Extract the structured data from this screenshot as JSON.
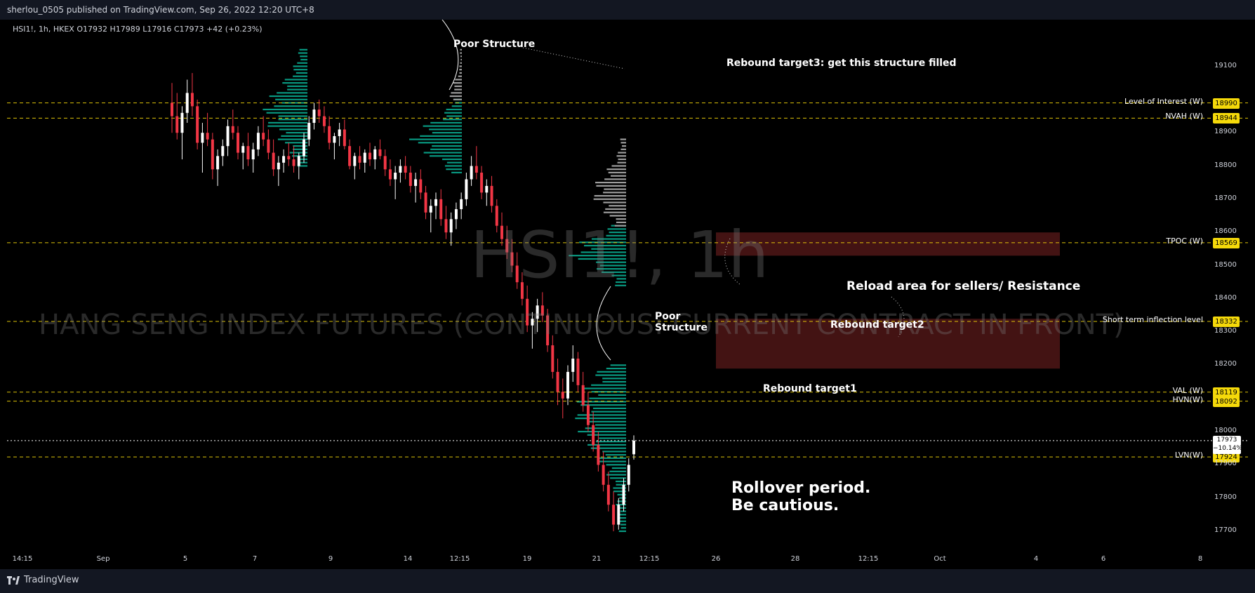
{
  "header": {
    "published": "sherlou_0505 published on TradingView.com, Sep 26, 2022 12:20 UTC+8"
  },
  "legend": {
    "text": "HSI1!, 1h, HKEX  O17932  H17989  L17916  C17973  +42 (+0.23%)"
  },
  "watermark": {
    "symbol": "HSI1!, 1h",
    "name": "HANG SENG INDEX FUTURES (CONTINUOUS: CURRENT CONTRACT IN FRONT)"
  },
  "footer": {
    "brand": "TradingView"
  },
  "colors": {
    "up": "#ffffff",
    "down": "#f23645",
    "profile_green": "#089981",
    "profile_grey": "#9e9e9e",
    "zone": "#5a1a1a",
    "level_line": "#f5d90a",
    "tag_bg": "#f5d90a"
  },
  "chart_data": {
    "type": "candlestick",
    "symbol": "HSI1!",
    "interval": "1h",
    "exchange": "HKEX",
    "ohlc_last": {
      "open": 17932,
      "high": 17989,
      "low": 17916,
      "close": 17973,
      "change": "+42 (+0.23%)"
    },
    "current_price": {
      "value": 17973,
      "label": "17973",
      "change_label": "−10.14%"
    },
    "ylim": [
      17660,
      19190
    ],
    "y_ticks": [
      19100,
      18900,
      18800,
      18700,
      18600,
      18500,
      18400,
      18300,
      18200,
      18000,
      17900,
      17800,
      17700
    ],
    "x_ticks": [
      "14:15",
      "Sep",
      "5",
      "7",
      "9",
      "14",
      "12:15",
      "19",
      "21",
      "12:15",
      "26",
      "28",
      "12:15",
      "Oct",
      "4",
      "6",
      "8"
    ],
    "levels": [
      {
        "label": "Level of Interest (W)",
        "value": 18990,
        "tag": "18990"
      },
      {
        "label": "NVAH (W)",
        "value": 18944,
        "tag": "18944"
      },
      {
        "label": "TPOC (W)",
        "value": 18569,
        "tag": "18569"
      },
      {
        "label": "Short term inflection level",
        "value": 18332,
        "tag": "18332"
      },
      {
        "label": "VAL (W)",
        "value": 18119,
        "tag": "18119"
      },
      {
        "label": "HVN(W)",
        "value": 18092,
        "tag": "18092"
      },
      {
        "label": "LVN(W)",
        "value": 17924,
        "tag": "17924"
      }
    ],
    "zones": [
      {
        "name": "Reload area for sellers/ Resistance",
        "from": 18530,
        "to": 18600
      },
      {
        "name": "Rebound target2",
        "from": 18190,
        "to": 18340
      }
    ],
    "annotations": [
      {
        "text": "Poor Structure"
      },
      {
        "text": "Rebound target3: get this structure filled"
      },
      {
        "text": "Reload area for sellers/ Resistance"
      },
      {
        "text": "Poor\nStructure"
      },
      {
        "text": "Rebound target2"
      },
      {
        "text": "Rebound target1"
      },
      {
        "text": "Rollover period.\nBe cautious."
      }
    ],
    "candles": [
      [
        18990,
        19050,
        18900,
        18950
      ],
      [
        18950,
        19020,
        18880,
        18900
      ],
      [
        18900,
        18980,
        18820,
        18960
      ],
      [
        18960,
        19060,
        18930,
        19020
      ],
      [
        19020,
        19080,
        18950,
        18980
      ],
      [
        18980,
        19000,
        18850,
        18870
      ],
      [
        18870,
        18930,
        18780,
        18900
      ],
      [
        18900,
        18960,
        18860,
        18880
      ],
      [
        18880,
        18900,
        18760,
        18790
      ],
      [
        18790,
        18850,
        18740,
        18830
      ],
      [
        18830,
        18880,
        18800,
        18860
      ],
      [
        18860,
        18940,
        18830,
        18920
      ],
      [
        18920,
        18970,
        18880,
        18900
      ],
      [
        18900,
        18920,
        18820,
        18840
      ],
      [
        18840,
        18870,
        18790,
        18860
      ],
      [
        18860,
        18900,
        18800,
        18820
      ],
      [
        18820,
        18870,
        18780,
        18850
      ],
      [
        18850,
        18920,
        18830,
        18900
      ],
      [
        18900,
        18950,
        18860,
        18880
      ],
      [
        18880,
        18910,
        18820,
        18840
      ],
      [
        18840,
        18880,
        18770,
        18790
      ],
      [
        18790,
        18830,
        18740,
        18810
      ],
      [
        18810,
        18850,
        18780,
        18830
      ],
      [
        18830,
        18870,
        18800,
        18820
      ],
      [
        18820,
        18860,
        18780,
        18800
      ],
      [
        18800,
        18840,
        18760,
        18830
      ],
      [
        18830,
        18900,
        18810,
        18880
      ],
      [
        18880,
        18950,
        18860,
        18930
      ],
      [
        18930,
        18990,
        18910,
        18970
      ],
      [
        18970,
        19000,
        18930,
        18950
      ],
      [
        18950,
        18980,
        18900,
        18920
      ],
      [
        18920,
        18950,
        18850,
        18870
      ],
      [
        18870,
        18900,
        18820,
        18890
      ],
      [
        18890,
        18930,
        18860,
        18910
      ],
      [
        18910,
        18940,
        18850,
        18860
      ],
      [
        18860,
        18880,
        18790,
        18800
      ],
      [
        18800,
        18840,
        18760,
        18830
      ],
      [
        18830,
        18860,
        18790,
        18810
      ],
      [
        18810,
        18850,
        18780,
        18840
      ],
      [
        18840,
        18870,
        18800,
        18820
      ],
      [
        18820,
        18860,
        18790,
        18850
      ],
      [
        18850,
        18880,
        18820,
        18830
      ],
      [
        18830,
        18850,
        18770,
        18790
      ],
      [
        18790,
        18820,
        18740,
        18760
      ],
      [
        18760,
        18800,
        18700,
        18780
      ],
      [
        18780,
        18820,
        18750,
        18800
      ],
      [
        18800,
        18830,
        18760,
        18780
      ],
      [
        18780,
        18800,
        18720,
        18740
      ],
      [
        18740,
        18780,
        18690,
        18760
      ],
      [
        18760,
        18790,
        18700,
        18720
      ],
      [
        18720,
        18740,
        18640,
        18660
      ],
      [
        18660,
        18700,
        18600,
        18680
      ],
      [
        18680,
        18720,
        18640,
        18700
      ],
      [
        18700,
        18730,
        18620,
        18640
      ],
      [
        18640,
        18680,
        18580,
        18600
      ],
      [
        18600,
        18660,
        18560,
        18640
      ],
      [
        18640,
        18690,
        18610,
        18670
      ],
      [
        18670,
        18720,
        18640,
        18700
      ],
      [
        18700,
        18780,
        18680,
        18760
      ],
      [
        18760,
        18830,
        18740,
        18800
      ],
      [
        18800,
        18860,
        18760,
        18780
      ],
      [
        18780,
        18800,
        18700,
        18720
      ],
      [
        18720,
        18760,
        18680,
        18740
      ],
      [
        18740,
        18770,
        18660,
        18680
      ],
      [
        18680,
        18700,
        18600,
        18620
      ],
      [
        18620,
        18660,
        18560,
        18580
      ],
      [
        18580,
        18620,
        18520,
        18540
      ],
      [
        18540,
        18580,
        18480,
        18500
      ],
      [
        18500,
        18540,
        18430,
        18450
      ],
      [
        18450,
        18480,
        18380,
        18400
      ],
      [
        18400,
        18440,
        18300,
        18320
      ],
      [
        18320,
        18360,
        18250,
        18340
      ],
      [
        18340,
        18400,
        18300,
        18380
      ],
      [
        18380,
        18420,
        18330,
        18350
      ],
      [
        18350,
        18370,
        18240,
        18260
      ],
      [
        18260,
        18290,
        18160,
        18180
      ],
      [
        18180,
        18220,
        18080,
        18120
      ],
      [
        18120,
        18160,
        18040,
        18100
      ],
      [
        18100,
        18200,
        18080,
        18180
      ],
      [
        18180,
        18260,
        18150,
        18220
      ],
      [
        18220,
        18240,
        18120,
        18140
      ],
      [
        18140,
        18180,
        18060,
        18080
      ],
      [
        18080,
        18120,
        18000,
        18020
      ],
      [
        18020,
        18060,
        17940,
        17960
      ],
      [
        17960,
        18000,
        17880,
        17900
      ],
      [
        17900,
        17940,
        17820,
        17840
      ],
      [
        17840,
        17880,
        17760,
        17780
      ],
      [
        17780,
        17820,
        17700,
        17720
      ],
      [
        17720,
        17800,
        17705,
        17780
      ],
      [
        17780,
        17860,
        17760,
        17840
      ],
      [
        17840,
        17920,
        17820,
        17900
      ],
      [
        17932,
        17989,
        17916,
        17973
      ]
    ]
  }
}
